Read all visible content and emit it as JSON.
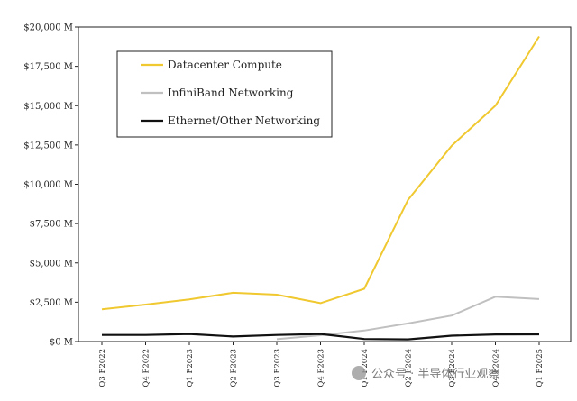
{
  "chart_data": {
    "type": "line",
    "title": "",
    "xlabel": "",
    "ylabel": "",
    "categories": [
      "Q3 F2022",
      "Q4 F2022",
      "Q1 F2023",
      "Q2 F2023",
      "Q3 F2023",
      "Q4 F2023",
      "Q1 F2024",
      "Q2 F2024",
      "Q3 F2024",
      "Q4 F2024",
      "Q1 F2025"
    ],
    "ylim": [
      0,
      20000
    ],
    "y_ticks": [
      0,
      2500,
      5000,
      7500,
      10000,
      12500,
      15000,
      17500,
      20000
    ],
    "y_tick_labels": [
      "$0 M",
      "$2,500 M",
      "$5,000 M",
      "$7,500 M",
      "$10,000 M",
      "$12,500 M",
      "$15,000 M",
      "$17,500 M",
      "$20,000 M"
    ],
    "grid": false,
    "legend_position": "top-left",
    "series": [
      {
        "name": "Datacenter Compute",
        "color": "#f0c830",
        "values": [
          2050,
          2350,
          2680,
          3100,
          2980,
          2440,
          3350,
          9000,
          12450,
          15000,
          19400
        ]
      },
      {
        "name": "InfiniBand Networking",
        "color": "#c0c0c0",
        "values": [
          null,
          null,
          null,
          null,
          150,
          400,
          700,
          1150,
          1650,
          2850,
          2700
        ]
      },
      {
        "name": "Ethernet/Other Networking",
        "color": "#111111",
        "values": [
          420,
          420,
          480,
          320,
          420,
          480,
          160,
          140,
          370,
          450,
          460
        ]
      }
    ]
  },
  "watermark": {
    "text": "公众号 · 半导体行业观察"
  }
}
